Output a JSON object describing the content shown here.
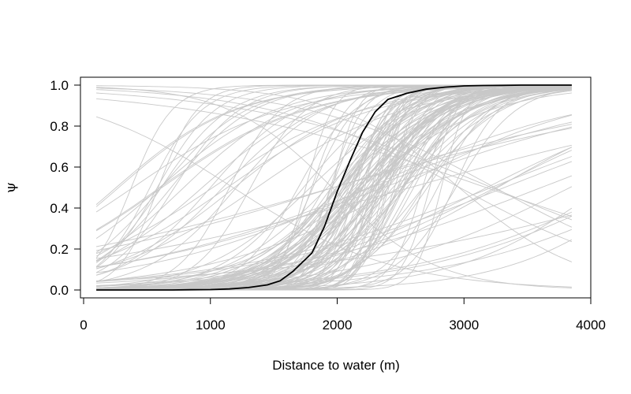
{
  "chart_data": {
    "type": "line",
    "title": "",
    "xlabel": "Distance to water (m)",
    "ylabel": "ψ",
    "xlim": [
      0,
      4000
    ],
    "ylim": [
      0,
      1
    ],
    "x_ticks": [
      "0",
      "1000",
      "2000",
      "3000",
      "4000"
    ],
    "y_ticks": [
      "0.0",
      "0.2",
      "0.4",
      "0.6",
      "0.8",
      "1.0"
    ],
    "grid": false,
    "legend": "none",
    "x": [
      100,
      250,
      400,
      550,
      700,
      850,
      1000,
      1150,
      1300,
      1450,
      1550,
      1650,
      1800,
      1900,
      2000,
      2100,
      2200,
      2300,
      2400,
      2550,
      2700,
      2850,
      3000,
      3150,
      3300,
      3450,
      3600,
      3850
    ],
    "series": [
      {
        "color": "#000000",
        "values": [
          0.0,
          0.0,
          0.0,
          0.0,
          0.0,
          0.001,
          0.002,
          0.005,
          0.012,
          0.025,
          0.045,
          0.09,
          0.18,
          0.31,
          0.48,
          0.63,
          0.77,
          0.87,
          0.93,
          0.96,
          0.98,
          0.99,
          0.996,
          0.998,
          0.999,
          1.0,
          1.0,
          1.0
        ]
      }
    ],
    "background_series": {
      "count": 150,
      "color": "#c8c8c8",
      "description_of_shape": "logistic"
    }
  },
  "colors": {
    "main_line": "#000000",
    "background_lines": "#c8c8c8",
    "axis": "#000000"
  }
}
